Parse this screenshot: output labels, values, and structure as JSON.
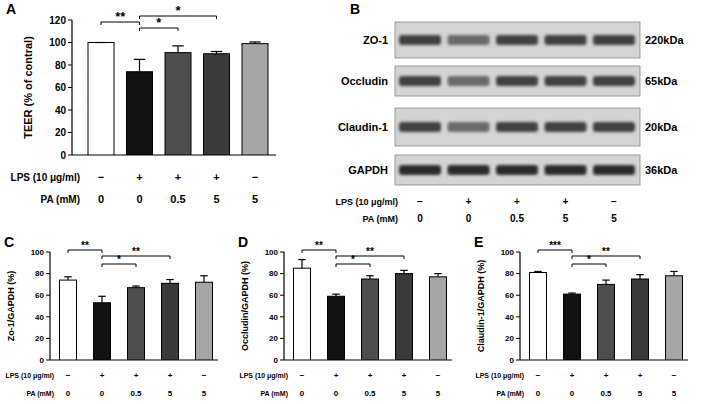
{
  "chart_data": [
    {
      "type": "bar",
      "title": "A",
      "y_label": "TEER (% of contral)",
      "values": [
        100,
        74,
        91,
        90,
        99
      ],
      "errors": [
        0,
        11,
        6,
        2,
        1.5
      ],
      "colors": [
        "#ffffff",
        "#111111",
        "#4d4d4d",
        "#3a3a3a",
        "#a6a6a6"
      ],
      "ylim": [
        0,
        120
      ],
      "yticks": [
        0,
        20,
        40,
        60,
        80,
        100,
        120
      ],
      "significance": [
        {
          "from": 0,
          "to": 1,
          "label": "**"
        },
        {
          "from": 1,
          "to": 2,
          "label": "*"
        },
        {
          "from": 1,
          "to": 3,
          "label": "*"
        }
      ],
      "conditions": [
        {
          "label": "LPS (10 μg/ml)",
          "values": [
            "−",
            "+",
            "+",
            "+",
            "−"
          ]
        },
        {
          "label": "PA (mM)",
          "values": [
            0,
            0,
            0.5,
            5,
            5
          ]
        }
      ]
    },
    {
      "type": "bar",
      "title": "C",
      "y_label": "Zo-1/GAPDH (%)",
      "values": [
        74,
        53,
        67,
        71,
        72
      ],
      "errors": [
        3,
        6,
        1.5,
        3.5,
        6
      ],
      "colors": [
        "#ffffff",
        "#111111",
        "#4d4d4d",
        "#3a3a3a",
        "#a6a6a6"
      ],
      "ylim": [
        0,
        100
      ],
      "yticks": [
        0,
        20,
        40,
        60,
        80,
        100
      ],
      "significance": [
        {
          "from": 0,
          "to": 1,
          "label": "**"
        },
        {
          "from": 1,
          "to": 2,
          "label": "*"
        },
        {
          "from": 1,
          "to": 3,
          "label": "**"
        }
      ],
      "conditions": [
        {
          "label": "LPS (10 μg/ml)",
          "values": [
            "−",
            "+",
            "+",
            "+",
            "−"
          ]
        },
        {
          "label": "PA (mM)",
          "values": [
            0,
            0,
            0.5,
            5,
            5
          ]
        }
      ]
    },
    {
      "type": "bar",
      "title": "D",
      "y_label": "Occludin/GAPDH (%)",
      "values": [
        85,
        59,
        75,
        80,
        77
      ],
      "errors": [
        8,
        2,
        3,
        3,
        3
      ],
      "colors": [
        "#ffffff",
        "#111111",
        "#4d4d4d",
        "#3a3a3a",
        "#a6a6a6"
      ],
      "ylim": [
        0,
        100
      ],
      "yticks": [
        0,
        20,
        40,
        60,
        80,
        100
      ],
      "significance": [
        {
          "from": 0,
          "to": 1,
          "label": "**"
        },
        {
          "from": 1,
          "to": 2,
          "label": "*"
        },
        {
          "from": 1,
          "to": 3,
          "label": "**"
        }
      ],
      "conditions": [
        {
          "label": "LPS (10 μg/ml)",
          "values": [
            "−",
            "+",
            "+",
            "+",
            "−"
          ]
        },
        {
          "label": "PA (mM)",
          "values": [
            0,
            0,
            0.5,
            5,
            5
          ]
        }
      ]
    },
    {
      "type": "bar",
      "title": "E",
      "y_label": "Claudin-1/GAPDH (%)",
      "values": [
        81,
        61,
        70,
        75,
        78
      ],
      "errors": [
        1,
        1,
        4,
        4,
        4
      ],
      "colors": [
        "#ffffff",
        "#111111",
        "#4d4d4d",
        "#3a3a3a",
        "#a6a6a6"
      ],
      "ylim": [
        0,
        100
      ],
      "yticks": [
        0,
        20,
        40,
        60,
        80,
        100
      ],
      "significance": [
        {
          "from": 0,
          "to": 1,
          "label": "***"
        },
        {
          "from": 1,
          "to": 2,
          "label": "*"
        },
        {
          "from": 1,
          "to": 3,
          "label": "**"
        }
      ],
      "conditions": [
        {
          "label": "LPS (10 μg/ml)",
          "values": [
            "−",
            "+",
            "+",
            "+",
            "−"
          ]
        },
        {
          "label": "PA (mM)",
          "values": [
            0,
            0,
            0.5,
            5,
            5
          ]
        }
      ]
    }
  ],
  "blot": {
    "title": "B",
    "rows": [
      {
        "protein": "ZO-1",
        "size": "220kDa"
      },
      {
        "protein": "Occludin",
        "size": "65kDa"
      },
      {
        "protein": "Claudin-1",
        "size": "20kDa"
      },
      {
        "protein": "GAPDH",
        "size": "36kDa"
      }
    ],
    "conditions": [
      {
        "label": "LPS (10 μg/ml)",
        "values": [
          "−",
          "+",
          "+",
          "+",
          "−"
        ]
      },
      {
        "label": "PA (mM)",
        "values": [
          0,
          0,
          0.5,
          5,
          5
        ]
      }
    ]
  }
}
